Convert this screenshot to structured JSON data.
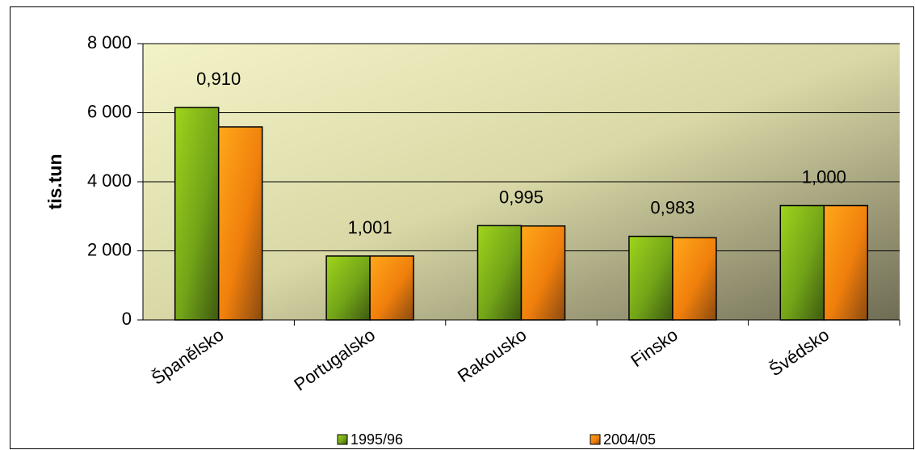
{
  "chart_data": {
    "type": "bar",
    "title": "",
    "xlabel": "",
    "ylabel": "tis.tun",
    "ylim": [
      0,
      8000
    ],
    "yticks": [
      0,
      2000,
      4000,
      6000,
      8000
    ],
    "ytick_labels": [
      "0",
      "2 000",
      "4 000",
      "6 000",
      "8 000"
    ],
    "categories": [
      "Španělsko",
      "Portugalsko",
      "Rakousko",
      "Finsko",
      "Švédsko"
    ],
    "series": [
      {
        "name": "1995/96",
        "values": [
          6150,
          1850,
          2730,
          2420,
          3310
        ],
        "color": "#8cc21e"
      },
      {
        "name": "2004/05",
        "values": [
          5590,
          1850,
          2720,
          2380,
          3310
        ],
        "color": "#ff9a10"
      }
    ],
    "annotations": [
      "0,910",
      "1,001",
      "0,995",
      "0,983",
      "1,000"
    ],
    "grid": true,
    "legend_position": "bottom",
    "plot_background": "#e8e8b0"
  }
}
